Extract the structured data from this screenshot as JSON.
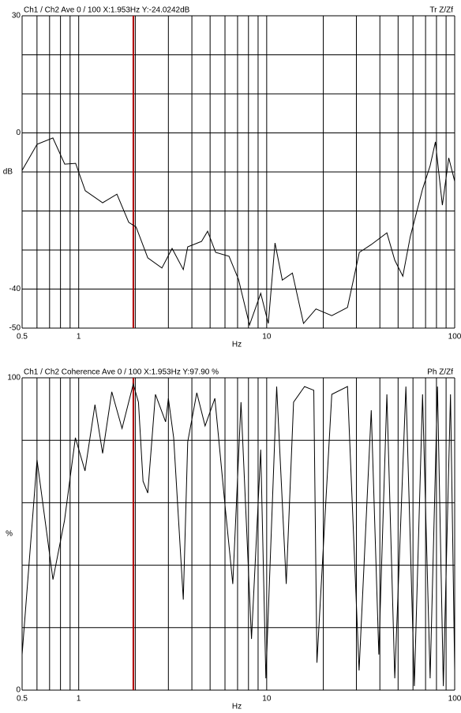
{
  "chart_data": [
    {
      "type": "line",
      "title": "Ch1 / Ch2  Ave 0 / 100  X:1.953Hz  Y:-24.0242dB",
      "corner_label": "Tr Z/Zf",
      "ylabel": "dB",
      "xlabel": "Hz",
      "log_x": true,
      "cursor_x": 1.953,
      "cursor_color": "#b00000",
      "xlim": [
        0.5,
        100
      ],
      "xticks": [
        0.5,
        1,
        10,
        100
      ],
      "xgrid": [
        0.5,
        0.6,
        0.7,
        0.8,
        0.9,
        1,
        2,
        3,
        4,
        5,
        6,
        7,
        8,
        9,
        10,
        20,
        30,
        40,
        50,
        60,
        70,
        80,
        90,
        100
      ],
      "ylim": [
        -50,
        30
      ],
      "yticks": [
        30,
        0,
        -40,
        -50
      ],
      "ygrid": [
        30,
        20,
        10,
        0,
        -10,
        -20,
        -30,
        -40,
        -50
      ],
      "x": [
        0.5,
        0.601,
        0.729,
        0.843,
        0.963,
        1.084,
        1.341,
        1.597,
        1.846,
        2.02,
        2.33,
        2.77,
        3.14,
        3.6,
        3.8,
        4.5,
        4.85,
        5.35,
        6.3,
        7.08,
        8.1,
        9.3,
        10.2,
        11.07,
        12.1,
        13.7,
        15.7,
        18.3,
        22.2,
        26.9,
        31.1,
        36,
        43.6,
        48,
        53,
        58,
        67.5,
        74,
        79,
        86,
        93,
        100
      ],
      "series": [
        {
          "color": "#000000",
          "values": [
            -9.6,
            -2.9,
            -1.3,
            -8,
            -7.8,
            -14.8,
            -17.9,
            -15.7,
            -22.9,
            -24.1,
            -32,
            -34.6,
            -29.6,
            -35,
            -29.2,
            -27.8,
            -25.2,
            -30.6,
            -31.6,
            -37.5,
            -49.2,
            -41.1,
            -48.8,
            -28.2,
            -37.7,
            -35.9,
            -48.8,
            -45.1,
            -46.8,
            -44.7,
            -30.6,
            -28.6,
            -25.6,
            -32.6,
            -36.7,
            -26.6,
            -14.4,
            -8.4,
            -2.3,
            -18.5,
            -6.4,
            -12.4
          ]
        }
      ]
    },
    {
      "type": "line",
      "title": "Ch1 / Ch2  Coherence Ave 0 / 100  X:1.953Hz  Y:97.90 %",
      "corner_label": "Ph Z/Zf",
      "ylabel": "%",
      "xlabel": "Hz",
      "log_x": true,
      "cursor_x": 1.953,
      "cursor_color": "#b00000",
      "xlim": [
        0.5,
        100
      ],
      "xticks": [
        0.5,
        1,
        10,
        100
      ],
      "xgrid": [
        0.5,
        0.6,
        0.7,
        0.8,
        0.9,
        1,
        2,
        3,
        4,
        5,
        6,
        7,
        8,
        9,
        10,
        20,
        30,
        40,
        50,
        60,
        70,
        80,
        90,
        100
      ],
      "ylim": [
        0,
        100
      ],
      "yticks": [
        100,
        0
      ],
      "ygrid": [
        100,
        80,
        60,
        40,
        20,
        0
      ],
      "x": [
        0.5,
        0.6,
        0.73,
        0.84,
        0.96,
        1.08,
        1.22,
        1.34,
        1.5,
        1.7,
        1.95,
        2.08,
        2.2,
        2.33,
        2.56,
        2.9,
        3.0,
        3.2,
        3.6,
        3.8,
        4.25,
        4.7,
        5.3,
        6,
        6.6,
        7.3,
        8.3,
        9.3,
        9.9,
        11.3,
        12.7,
        13.9,
        15.9,
        17.8,
        18.5,
        22.2,
        26.9,
        31,
        36,
        39.5,
        43.6,
        48,
        55,
        61,
        67.5,
        74,
        81,
        87,
        95,
        100
      ],
      "series": [
        {
          "color": "#000000",
          "values": [
            11.4,
            73.7,
            35.4,
            54.3,
            80.8,
            70.2,
            91.4,
            75.8,
            95.5,
            83.8,
            98,
            92.2,
            66.9,
            63.1,
            94.7,
            85.9,
            93.4,
            80.8,
            29,
            79.5,
            95.2,
            84.6,
            93.4,
            59.3,
            34,
            92.2,
            16.4,
            77,
            3.8,
            97.2,
            34,
            92.2,
            97.2,
            96,
            8.8,
            94.7,
            97.2,
            6.3,
            89.6,
            11.4,
            94.7,
            3.8,
            97.2,
            1.3,
            94.7,
            3.8,
            97.2,
            1.3,
            94.7,
            6.3
          ]
        }
      ]
    }
  ]
}
